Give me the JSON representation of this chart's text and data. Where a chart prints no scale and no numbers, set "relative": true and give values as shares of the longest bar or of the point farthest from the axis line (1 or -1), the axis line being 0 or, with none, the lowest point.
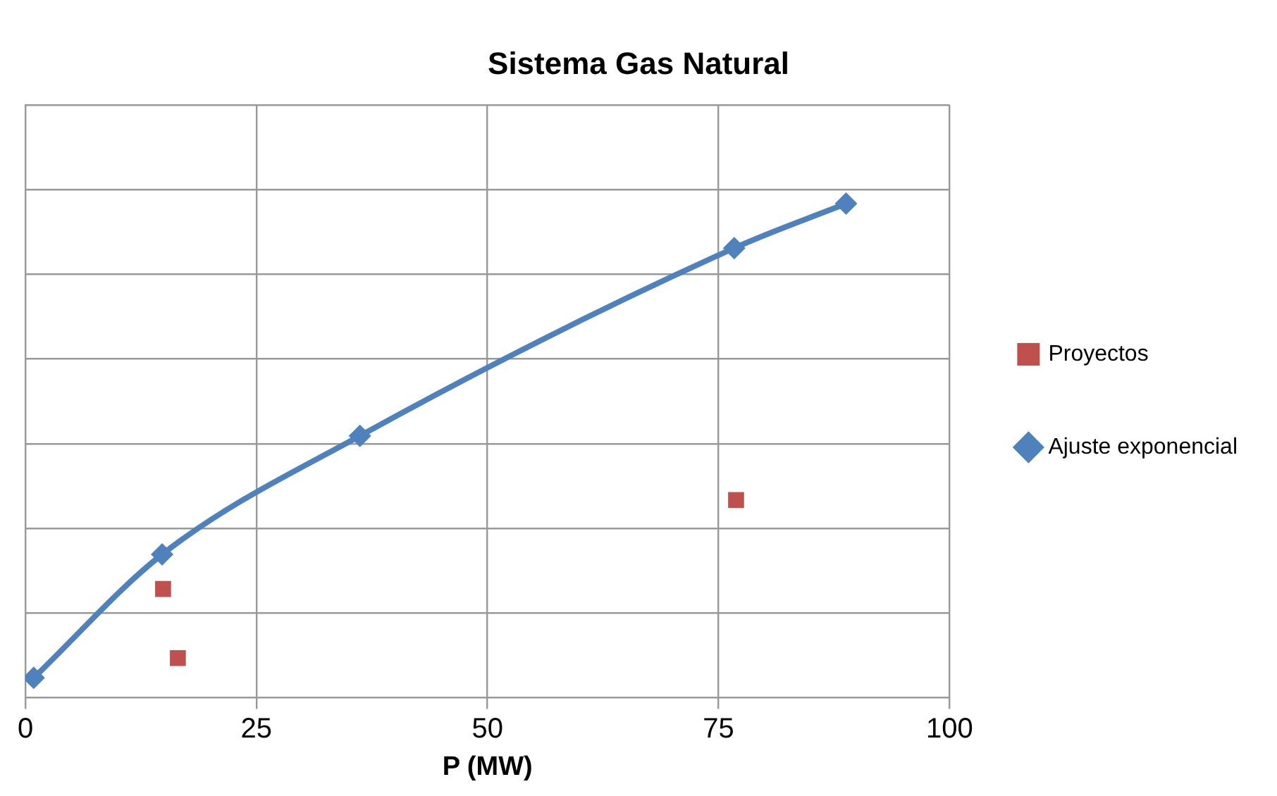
{
  "chart_data": {
    "type": "scatter",
    "title": "Sistema Gas Natural",
    "xlabel": "P (MW)",
    "relative": true,
    "xlim": [
      0,
      100
    ],
    "xticks": [
      0,
      25,
      50,
      75,
      100
    ],
    "grid": true,
    "legend": "right",
    "tick_labels": "x",
    "series": [
      {
        "name": "Proyectos",
        "type": "scatter",
        "color": "#c0504d",
        "marker": "square",
        "x": [
          14.9,
          16.5,
          76.9
        ],
        "values": [
          0.22,
          0.08,
          0.4
        ]
      },
      {
        "name": "Ajuste exponencial",
        "type": "line",
        "color": "#4f81bd",
        "marker": "diamond",
        "x": [
          0.9,
          14.8,
          36.2,
          76.7,
          88.8
        ],
        "values": [
          0.04,
          0.29,
          0.53,
          0.91,
          1
        ]
      }
    ]
  }
}
